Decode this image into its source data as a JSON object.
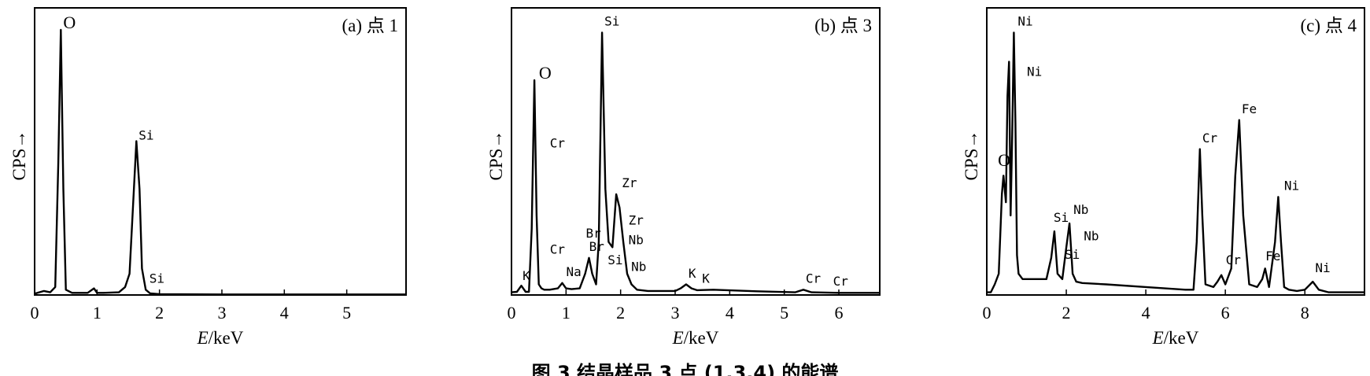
{
  "caption": "图 3 结晶样品 3 点 (1,3,4) 的能谱",
  "chart_data": [
    {
      "type": "line",
      "panel_label": "(a) 点 1",
      "xlabel_italic": "E",
      "xlabel_unit": "/keV",
      "ylabel": "CPS",
      "ylabel_arrow": "→",
      "xlim": [
        0,
        5.95
      ],
      "ylim": [
        0,
        100
      ],
      "xticks": [
        0,
        1,
        2,
        3,
        4,
        5
      ],
      "series": [
        {
          "x": [
            0,
            0.15,
            0.25,
            0.33,
            0.38,
            0.42,
            0.46,
            0.5,
            0.6,
            0.85,
            0.95,
            1.0,
            1.1,
            1.35,
            1.45,
            1.52,
            1.58,
            1.63,
            1.68,
            1.72,
            1.78,
            1.85,
            2.0,
            3.0,
            5.95
          ],
          "y": [
            0.5,
            1.5,
            1,
            3,
            50,
            100,
            40,
            2,
            0.8,
            0.8,
            2.5,
            0.8,
            0.8,
            1,
            3,
            8,
            35,
            58,
            40,
            10,
            2,
            0.6,
            0.3,
            0.2,
            0.2
          ]
        }
      ],
      "peak_labels": [
        {
          "text": "O",
          "x": 0.42,
          "y": 100,
          "style": "serif"
        },
        {
          "text": "Si",
          "x": 1.63,
          "y": 58,
          "style": "mono"
        },
        {
          "text": "Si",
          "x": 1.8,
          "y": 4,
          "style": "mono"
        }
      ]
    },
    {
      "type": "line",
      "panel_label": "(b) 点 3",
      "xlabel_italic": "E",
      "xlabel_unit": "/keV",
      "ylabel": "CPS",
      "ylabel_arrow": "→",
      "xlim": [
        0,
        6.75
      ],
      "ylim": [
        0,
        100
      ],
      "xticks": [
        0,
        1,
        2,
        3,
        4,
        5,
        6
      ],
      "series": [
        {
          "x": [
            0,
            0.1,
            0.18,
            0.26,
            0.32,
            0.37,
            0.42,
            0.46,
            0.5,
            0.55,
            0.6,
            0.7,
            0.85,
            0.93,
            1.0,
            1.1,
            1.25,
            1.35,
            1.42,
            1.48,
            1.55,
            1.6,
            1.66,
            1.72,
            1.78,
            1.85,
            1.92,
            1.98,
            2.05,
            2.12,
            2.2,
            2.3,
            2.5,
            3.0,
            3.1,
            3.2,
            3.3,
            3.4,
            3.7,
            4.5,
            5.2,
            5.35,
            5.5,
            6.0,
            6.75
          ],
          "y": [
            1,
            1.2,
            3.5,
            1.2,
            1.2,
            25,
            81,
            30,
            4,
            2.5,
            2,
            2,
            2.5,
            4.5,
            2.5,
            2.2,
            2.5,
            8,
            14,
            8,
            4,
            20,
            99,
            40,
            20,
            18,
            38,
            33,
            20,
            8,
            4,
            2,
            1.5,
            1.5,
            2.5,
            4,
            2.5,
            1.8,
            2,
            1.4,
            1,
            2,
            1,
            0.8,
            0.8
          ]
        }
      ],
      "peak_labels": [
        {
          "text": "O",
          "x": 0.46,
          "y": 81,
          "style": "serif"
        },
        {
          "text": "Cr",
          "x": 0.66,
          "y": 55,
          "style": "mono"
        },
        {
          "text": "Cr",
          "x": 0.66,
          "y": 15,
          "style": "mono"
        },
        {
          "text": "K",
          "x": 0.16,
          "y": 5,
          "style": "mono"
        },
        {
          "text": "Na",
          "x": 0.96,
          "y": 6.5,
          "style": "mono"
        },
        {
          "text": "Br",
          "x": 1.32,
          "y": 21,
          "style": "mono"
        },
        {
          "text": "Br",
          "x": 1.38,
          "y": 16,
          "style": "mono"
        },
        {
          "text": "Si",
          "x": 1.66,
          "y": 101,
          "style": "mono"
        },
        {
          "text": "Si",
          "x": 1.72,
          "y": 11,
          "style": "mono"
        },
        {
          "text": "Zr",
          "x": 1.98,
          "y": 40,
          "style": "mono"
        },
        {
          "text": "Zr",
          "x": 2.1,
          "y": 26,
          "style": "mono"
        },
        {
          "text": "Nb",
          "x": 2.1,
          "y": 18.5,
          "style": "mono"
        },
        {
          "text": "Nb",
          "x": 2.15,
          "y": 8.5,
          "style": "mono"
        },
        {
          "text": "K",
          "x": 3.2,
          "y": 6,
          "style": "mono"
        },
        {
          "text": "K",
          "x": 3.45,
          "y": 4,
          "style": "mono"
        },
        {
          "text": "Cr",
          "x": 5.35,
          "y": 4,
          "style": "mono"
        },
        {
          "text": "Cr",
          "x": 5.85,
          "y": 3,
          "style": "mono"
        }
      ]
    },
    {
      "type": "line",
      "panel_label": "(c) 点 4",
      "xlabel_italic": "E",
      "xlabel_unit": "/keV",
      "ylabel": "CPS",
      "ylabel_arrow": "→",
      "xlim": [
        0,
        9.5
      ],
      "ylim": [
        0,
        100
      ],
      "xticks": [
        0,
        2,
        4,
        6,
        8
      ],
      "series": [
        {
          "x": [
            0,
            0.1,
            0.2,
            0.3,
            0.38,
            0.42,
            0.48,
            0.52,
            0.56,
            0.6,
            0.64,
            0.68,
            0.72,
            0.76,
            0.8,
            0.9,
            1.0,
            1.2,
            1.5,
            1.62,
            1.7,
            1.78,
            1.9,
            2.0,
            2.08,
            2.16,
            2.25,
            2.4,
            3.0,
            4.0,
            5.0,
            5.2,
            5.28,
            5.36,
            5.42,
            5.5,
            5.7,
            5.8,
            5.9,
            6.0,
            6.15,
            6.25,
            6.35,
            6.45,
            6.6,
            6.8,
            6.93,
            7.0,
            7.1,
            7.25,
            7.33,
            7.4,
            7.48,
            7.6,
            7.8,
            8.0,
            8.1,
            8.2,
            8.35,
            8.6,
            9.5
          ],
          "y": [
            1,
            1,
            4,
            8,
            38,
            45,
            35,
            75,
            88,
            30,
            60,
            99,
            65,
            15,
            8,
            6,
            6,
            6,
            6,
            14,
            24,
            8,
            6,
            18,
            27,
            8,
            5,
            4.5,
            4,
            3,
            2,
            2,
            20,
            55,
            30,
            4,
            3,
            5,
            7.5,
            4,
            10,
            45,
            66,
            30,
            4,
            3,
            6,
            10,
            3,
            20,
            37,
            20,
            3,
            2,
            1.5,
            2,
            3.5,
            5,
            2,
            1,
            1
          ]
        }
      ],
      "peak_labels": [
        {
          "text": "O",
          "x": 0.22,
          "y": 48,
          "style": "serif"
        },
        {
          "text": "Ni",
          "x": 0.72,
          "y": 101,
          "style": "mono"
        },
        {
          "text": "Ni",
          "x": 0.95,
          "y": 82,
          "style": "mono"
        },
        {
          "text": "Si",
          "x": 1.62,
          "y": 27,
          "style": "mono"
        },
        {
          "text": "Si",
          "x": 1.9,
          "y": 13,
          "style": "mono"
        },
        {
          "text": "Nb",
          "x": 2.12,
          "y": 30,
          "style": "mono"
        },
        {
          "text": "Nb",
          "x": 2.38,
          "y": 20,
          "style": "mono"
        },
        {
          "text": "Cr",
          "x": 5.36,
          "y": 57,
          "style": "mono"
        },
        {
          "text": "Cr",
          "x": 5.95,
          "y": 11,
          "style": "mono"
        },
        {
          "text": "Fe",
          "x": 6.35,
          "y": 68,
          "style": "mono"
        },
        {
          "text": "Fe",
          "x": 6.95,
          "y": 12.5,
          "style": "mono"
        },
        {
          "text": "Ni",
          "x": 7.42,
          "y": 39,
          "style": "mono"
        },
        {
          "text": "Ni",
          "x": 8.2,
          "y": 8,
          "style": "mono"
        }
      ]
    }
  ]
}
